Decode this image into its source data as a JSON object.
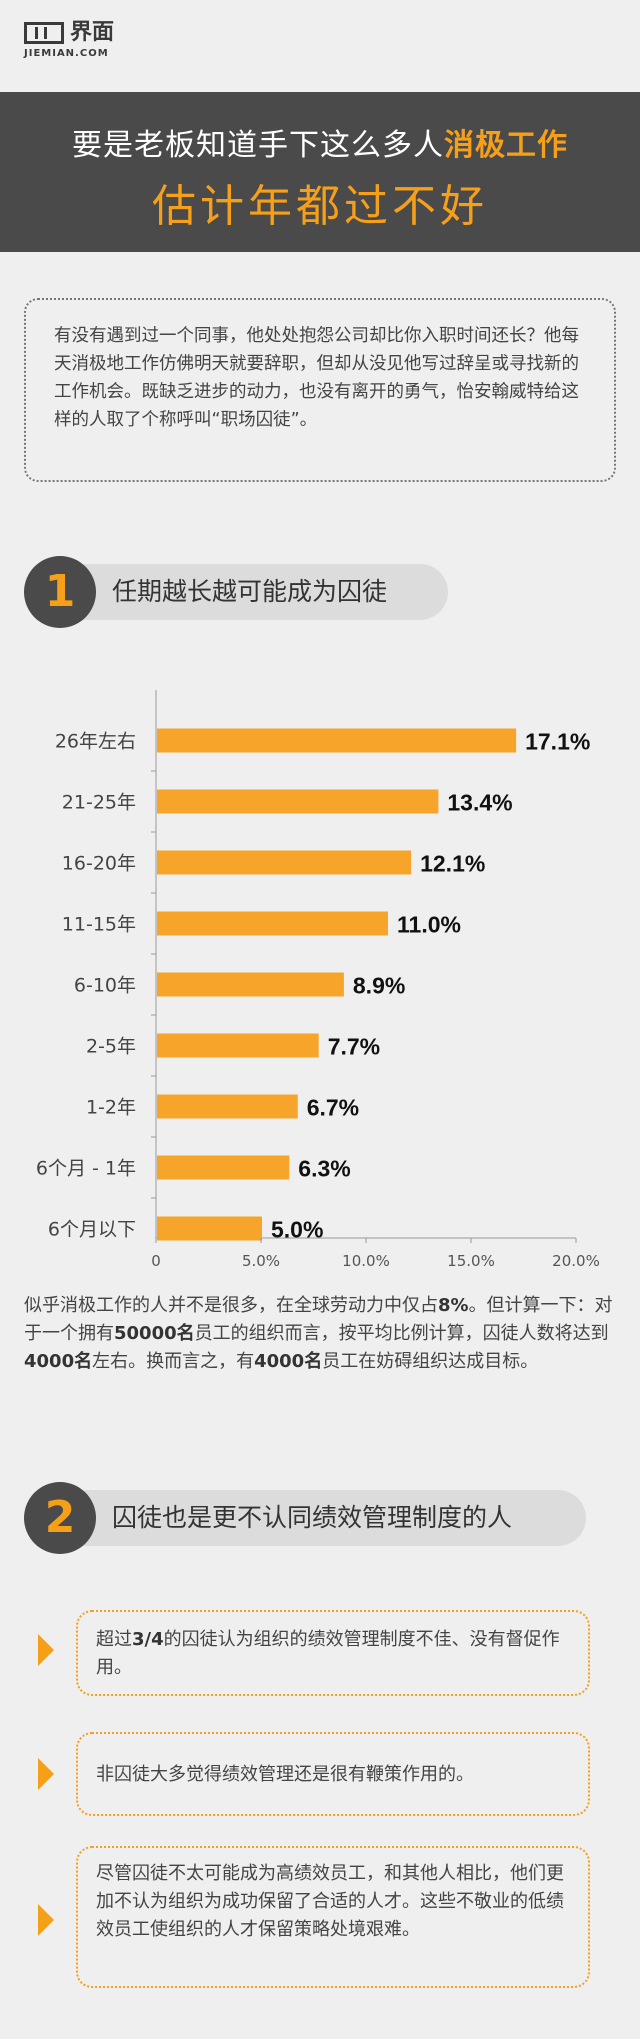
{
  "logo": {
    "cn": "界面",
    "en": "JIEMIAN.COM"
  },
  "banner": {
    "line1_a": "要是老板知道手下这么多人",
    "line1_b": "消极工作",
    "line2": "估计年都过不好"
  },
  "intro": "有没有遇到过一个同事，他处处抱怨公司却比你入职时间还长？他每天消极地工作仿佛明天就要辞职，但却从没见他写过辞呈或寻找新的工作机会。既缺乏进步的动力，也没有离开的勇气，怡安翰威特给这样的人取了个称呼叫“职场囚徒”。",
  "section1": {
    "number": "1",
    "title": "任期越长越可能成为囚徒"
  },
  "chart_data": {
    "type": "bar",
    "orientation": "horizontal",
    "title": "",
    "xlabel": "",
    "ylabel": "",
    "categories": [
      "26年左右",
      "21-25年",
      "16-20年",
      "11-15年",
      "6-10年",
      "2-5年",
      "1-2年",
      "6个月 - 1年",
      "6个月以下"
    ],
    "values": [
      17.1,
      13.4,
      12.1,
      11.0,
      8.9,
      7.7,
      6.7,
      6.3,
      5.0
    ],
    "value_labels": [
      "17.1%",
      "13.4%",
      "12.1%",
      "11.0%",
      "8.9%",
      "7.7%",
      "6.7%",
      "6.3%",
      "5.0%"
    ],
    "xticks": [
      "0",
      "5.0%",
      "10.0%",
      "15.0%",
      "20.0%"
    ],
    "xlim": [
      0,
      20
    ],
    "grid": false,
    "bar_color": "#f6a52a"
  },
  "para": {
    "t1": "似乎消极工作的人并不是很多，在全球劳动力中仅占",
    "b1": "8%",
    "t2": "。但计算一下：对于一个拥有",
    "b2": "50000名",
    "t3": "员工的组织而言，按平均比例计算，囚徒人数将达到",
    "b3": "4000名",
    "t4": "左右。换而言之，有",
    "b4": "4000名",
    "t5": "员工在妨碍组织达成目标。"
  },
  "section2": {
    "number": "2",
    "title": "囚徒也是更不认同绩效管理制度的人"
  },
  "points": {
    "p1_a": "超过",
    "p1_b": "3/4",
    "p1_c": "的囚徒认为组织的绩效管理制度不佳、没有督促作用。",
    "p2": "非囚徒大多觉得绩效管理还是很有鞭策作用的。",
    "p3": "尽管囚徒不太可能成为高绩效员工，和其他人相比，他们更加不认为组织为成功保留了合适的人才。这些不敬业的低绩效员工使组织的人才保留策略处境艰难。"
  },
  "colors": {
    "accent": "#f6a01a",
    "dark": "#4a4a4a",
    "background": "#efefef"
  }
}
